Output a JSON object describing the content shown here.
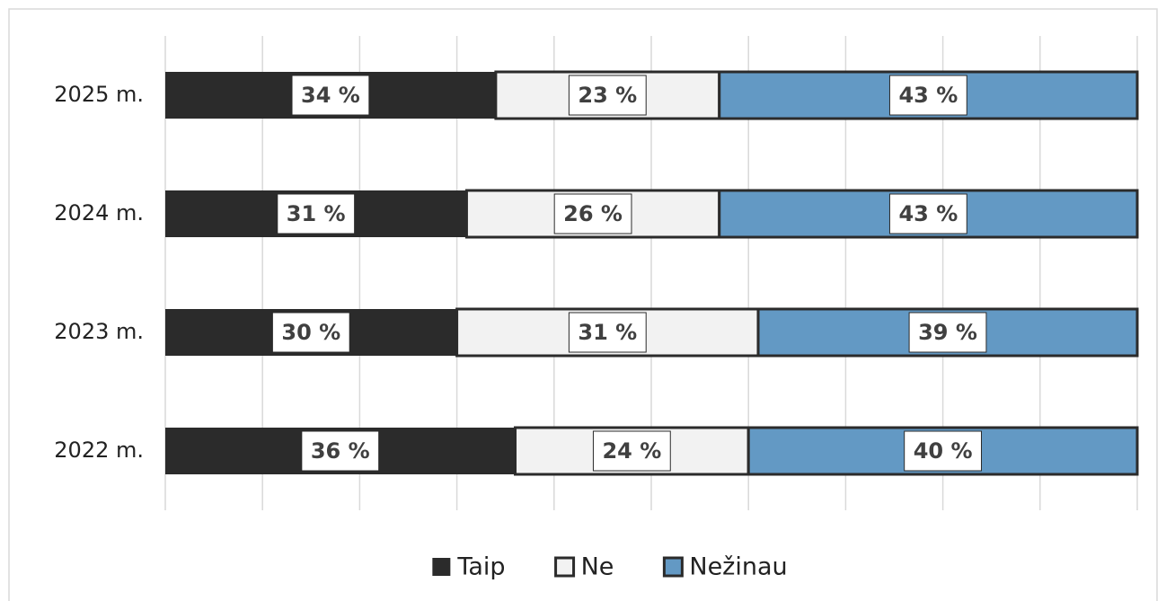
{
  "chart_data": {
    "type": "stacked_bar_horizontal",
    "categories": [
      "2025 m.",
      "2024 m.",
      "2023 m.",
      "2022 m."
    ],
    "series": [
      {
        "name": "Taip",
        "color": "#2b2b2b",
        "values": [
          34,
          31,
          30,
          36
        ],
        "value_labels": [
          "34 %",
          "31 %",
          "30 %",
          "36 %"
        ]
      },
      {
        "name": "Ne",
        "color": "#f2f2f2",
        "values": [
          23,
          26,
          31,
          24
        ],
        "value_labels": [
          "23 %",
          "26 %",
          "31 %",
          "24 %"
        ]
      },
      {
        "name": "Nežinau",
        "color": "#6399c4",
        "values": [
          43,
          43,
          39,
          40
        ],
        "value_labels": [
          "43 %",
          "43 %",
          "39 %",
          "40 %"
        ]
      }
    ],
    "xlim": [
      0,
      100
    ],
    "xticks": [
      0,
      10,
      20,
      30,
      40,
      50,
      60,
      70,
      80,
      90,
      100
    ],
    "grid": true,
    "legend": "bottom"
  }
}
